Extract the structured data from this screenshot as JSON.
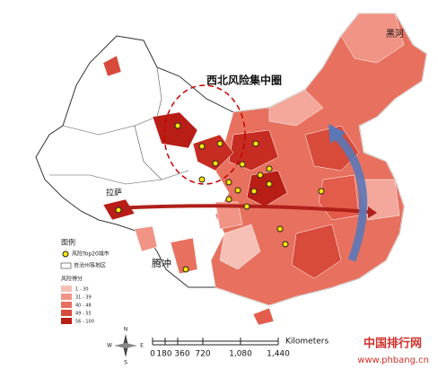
{
  "map": {
    "title": "西北风险集中圈",
    "places": [
      "黑河",
      "拉萨",
      "腾冲"
    ],
    "legend": {
      "title": "图例",
      "city_symbol": "风险Top20城市",
      "region_symbol": "自治州等地区",
      "score_title": "风险得分",
      "classes": [
        "1 - 30",
        "31 - 39",
        "40 - 48",
        "49 - 55",
        "56 - 100"
      ]
    },
    "scale": {
      "labels": [
        "0",
        "180",
        "360",
        "720",
        "1,080",
        "1,440"
      ],
      "unit": "Kilometers"
    },
    "compass": {
      "north": "N",
      "east": "E",
      "south": "S",
      "west": "W"
    },
    "watermark": {
      "name": "中国排行网",
      "url": "www.phbang.cn"
    }
  }
}
